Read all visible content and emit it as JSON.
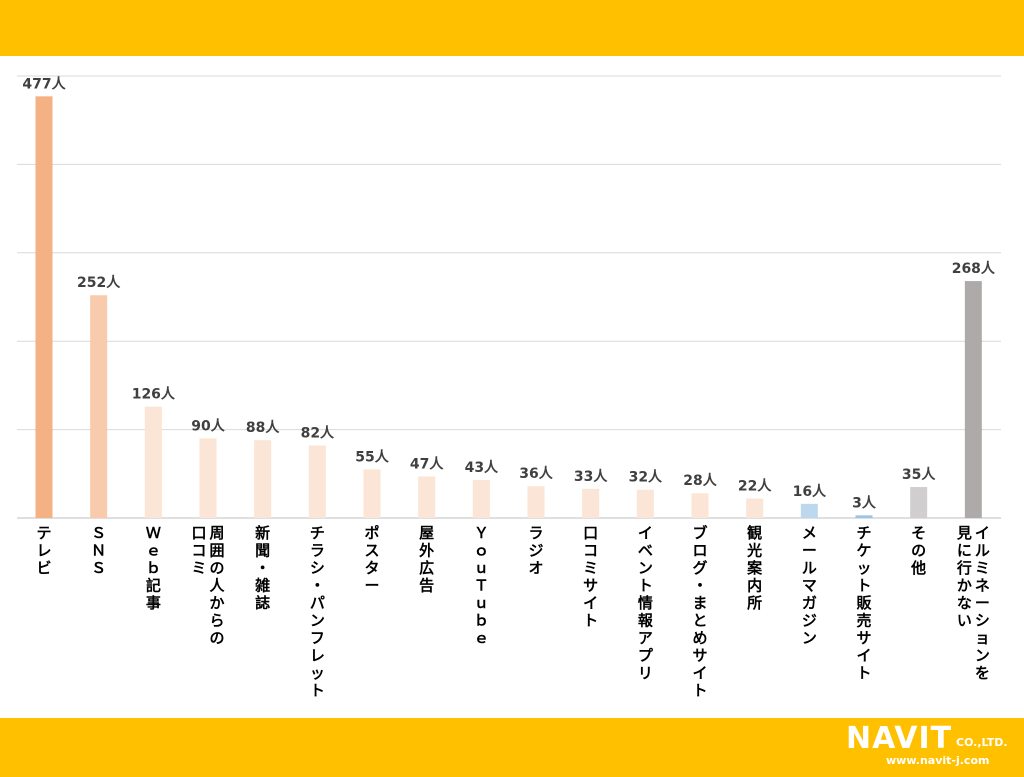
{
  "chart_data": {
    "type": "bar",
    "categories": [
      "テレビ",
      "ＳＮＳ",
      "Ｗｅｂ記事",
      "周囲の人からの\n口コミ",
      "新聞・雑誌",
      "チラシ・パンフレット",
      "ポスター",
      "屋外広告",
      "ＹｏｕＴｕｂｅ",
      "ラジオ",
      "口コミサイト",
      "イベント情報アプリ",
      "ブログ・まとめサイト",
      "観光案内所",
      "メールマガジン",
      "チケット販売サイト",
      "その他",
      "イルミネーションを\n見に行かない"
    ],
    "values": [
      477,
      252,
      126,
      90,
      88,
      82,
      55,
      47,
      43,
      36,
      33,
      32,
      28,
      22,
      16,
      3,
      35,
      268
    ],
    "value_labels": [
      "477人",
      "252人",
      "126人",
      "90人",
      "88人",
      "82人",
      "55人",
      "47人",
      "43人",
      "36人",
      "33人",
      "32人",
      "28人",
      "22人",
      "16人",
      "3人",
      "35人",
      "268人"
    ],
    "bar_colors": [
      "#f4b183",
      "#f8cbad",
      "#fbe5d6",
      "#fbe5d6",
      "#fbe5d6",
      "#fbe5d6",
      "#fbe5d6",
      "#fbe5d6",
      "#fbe5d6",
      "#fbe5d6",
      "#fbe5d6",
      "#fbe5d6",
      "#fbe5d6",
      "#fbe5d6",
      "#bdd7ee",
      "#9dc3e6",
      "#d0cece",
      "#aeaaaa"
    ],
    "ylim": [
      0,
      500
    ],
    "gridlines": [
      0,
      100,
      200,
      300,
      400,
      500
    ],
    "grid": true,
    "title": "",
    "xlabel": "",
    "ylabel": ""
  },
  "branding": {
    "logo_text": "NAVIT",
    "company_suffix": "CO.,LTD.",
    "url": "www.navit-j.com",
    "band_color": "#ffc000"
  }
}
